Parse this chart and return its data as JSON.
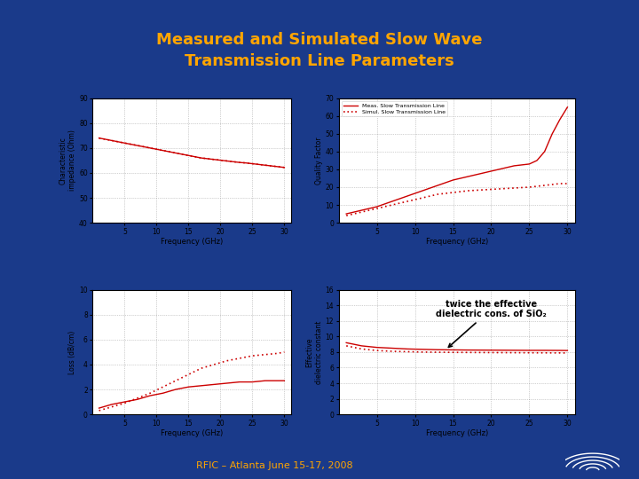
{
  "title": "Measured and Simulated Slow Wave\nTransmission Line Parameters",
  "title_color": "#FFA500",
  "bg_color": "#1a3a8a",
  "panel_bg": "#f0f0f0",
  "footer": "RFIC – Atlanta June 15-17, 2008",
  "footer_color": "#FFA500",
  "line_color_solid": "#cc0000",
  "line_color_dot": "#cc0000",
  "annotation_text": "twice the effective\ndielectric cons. of SiO₂",
  "plots": [
    {
      "ylabel": "Characteristic\nimpedance (Ohm)",
      "xlabel": "Frequency (GHz)",
      "ylim": [
        40,
        90
      ],
      "yticks": [
        40,
        50,
        60,
        70,
        80,
        90
      ],
      "xlim": [
        0,
        31
      ],
      "xticks": [
        5,
        10,
        15,
        20,
        25,
        30
      ],
      "series": [
        {
          "type": "solid",
          "x": [
            1,
            2,
            3,
            4,
            5,
            6,
            7,
            8,
            9,
            10,
            11,
            12,
            13,
            14,
            15,
            16,
            17,
            18,
            19,
            20,
            21,
            22,
            23,
            24,
            25,
            26,
            27,
            28,
            29,
            30
          ],
          "y": [
            74,
            73.5,
            73,
            72.5,
            72,
            71.5,
            71,
            70.5,
            70,
            69.5,
            69,
            68.5,
            68,
            67.5,
            67,
            66.5,
            66,
            65.7,
            65.4,
            65.1,
            64.8,
            64.5,
            64.2,
            64,
            63.7,
            63.4,
            63.1,
            62.8,
            62.5,
            62.2
          ]
        },
        {
          "type": "dotted",
          "x": [
            1,
            2,
            3,
            4,
            5,
            6,
            7,
            8,
            9,
            10,
            11,
            12,
            13,
            14,
            15,
            16,
            17,
            18,
            19,
            20,
            21,
            22,
            23,
            24,
            25,
            26,
            27,
            28,
            29,
            30
          ],
          "y": [
            74,
            73.5,
            73,
            72.5,
            72,
            71.5,
            71,
            70.5,
            70,
            69.5,
            69,
            68.5,
            68,
            67.5,
            67,
            66.5,
            66,
            65.7,
            65.4,
            65.1,
            64.8,
            64.5,
            64.2,
            64,
            63.7,
            63.4,
            63.1,
            62.8,
            62.5,
            62.2
          ]
        }
      ]
    },
    {
      "ylabel": "Quality Factor",
      "xlabel": "Frequency (GHz)",
      "ylim": [
        0,
        70
      ],
      "yticks": [
        0,
        10,
        20,
        30,
        40,
        50,
        60,
        70
      ],
      "xlim": [
        0,
        31
      ],
      "xticks": [
        5,
        10,
        15,
        20,
        25,
        30
      ],
      "legend": [
        "Meas. Slow Transmission Line",
        "Simul. Slow Transmission Line"
      ],
      "series": [
        {
          "type": "solid",
          "x": [
            1,
            3,
            5,
            7,
            9,
            11,
            13,
            15,
            17,
            19,
            21,
            23,
            25,
            26,
            27,
            28,
            29,
            30
          ],
          "y": [
            5,
            7,
            9,
            12,
            15,
            18,
            21,
            24,
            26,
            28,
            30,
            32,
            33,
            35,
            40,
            50,
            58,
            65
          ]
        },
        {
          "type": "dotted",
          "x": [
            1,
            3,
            5,
            7,
            9,
            11,
            13,
            15,
            17,
            19,
            21,
            23,
            25,
            27,
            29,
            30
          ],
          "y": [
            4,
            6,
            8,
            10,
            12,
            14,
            16,
            17,
            18,
            18.5,
            19,
            19.5,
            20,
            21,
            22,
            22
          ]
        }
      ]
    },
    {
      "ylabel": "Loss (dB/cm)",
      "xlabel": "Frequency (GHz)",
      "ylim": [
        0,
        10
      ],
      "yticks": [
        0,
        2,
        4,
        6,
        8,
        10
      ],
      "xlim": [
        0,
        31
      ],
      "xticks": [
        5,
        10,
        15,
        20,
        25,
        30
      ],
      "series": [
        {
          "type": "solid",
          "x": [
            1,
            3,
            5,
            7,
            9,
            11,
            13,
            15,
            17,
            19,
            21,
            23,
            25,
            27,
            29,
            30
          ],
          "y": [
            0.5,
            0.8,
            1.0,
            1.2,
            1.5,
            1.7,
            2.0,
            2.2,
            2.3,
            2.4,
            2.5,
            2.6,
            2.6,
            2.7,
            2.7,
            2.7
          ]
        },
        {
          "type": "dotted",
          "x": [
            1,
            3,
            5,
            7,
            9,
            11,
            13,
            15,
            17,
            19,
            21,
            23,
            25,
            27,
            29,
            30
          ],
          "y": [
            0.3,
            0.6,
            0.9,
            1.3,
            1.7,
            2.2,
            2.7,
            3.2,
            3.7,
            4.0,
            4.3,
            4.5,
            4.7,
            4.8,
            4.9,
            5.0
          ]
        }
      ]
    },
    {
      "ylabel": "Effective\ndielectric constant",
      "xlabel": "Frequency (GHz)",
      "ylim": [
        0,
        16
      ],
      "yticks": [
        0,
        2,
        4,
        6,
        8,
        10,
        12,
        14,
        16
      ],
      "xlim": [
        0,
        31
      ],
      "xticks": [
        5,
        10,
        15,
        20,
        25,
        30
      ],
      "annotation": true,
      "series": [
        {
          "type": "solid",
          "x": [
            1,
            3,
            5,
            7,
            9,
            11,
            13,
            15,
            17,
            19,
            21,
            23,
            25,
            27,
            29,
            30
          ],
          "y": [
            9.2,
            8.8,
            8.6,
            8.5,
            8.4,
            8.35,
            8.3,
            8.28,
            8.26,
            8.25,
            8.24,
            8.23,
            8.22,
            8.22,
            8.21,
            8.2
          ]
        },
        {
          "type": "dotted",
          "x": [
            1,
            3,
            5,
            7,
            9,
            11,
            13,
            15,
            17,
            19,
            21,
            23,
            25,
            27,
            29,
            30
          ],
          "y": [
            8.8,
            8.4,
            8.2,
            8.1,
            8.05,
            8.0,
            7.98,
            7.96,
            7.95,
            7.94,
            7.93,
            7.92,
            7.91,
            7.9,
            7.89,
            7.88
          ]
        }
      ]
    }
  ]
}
